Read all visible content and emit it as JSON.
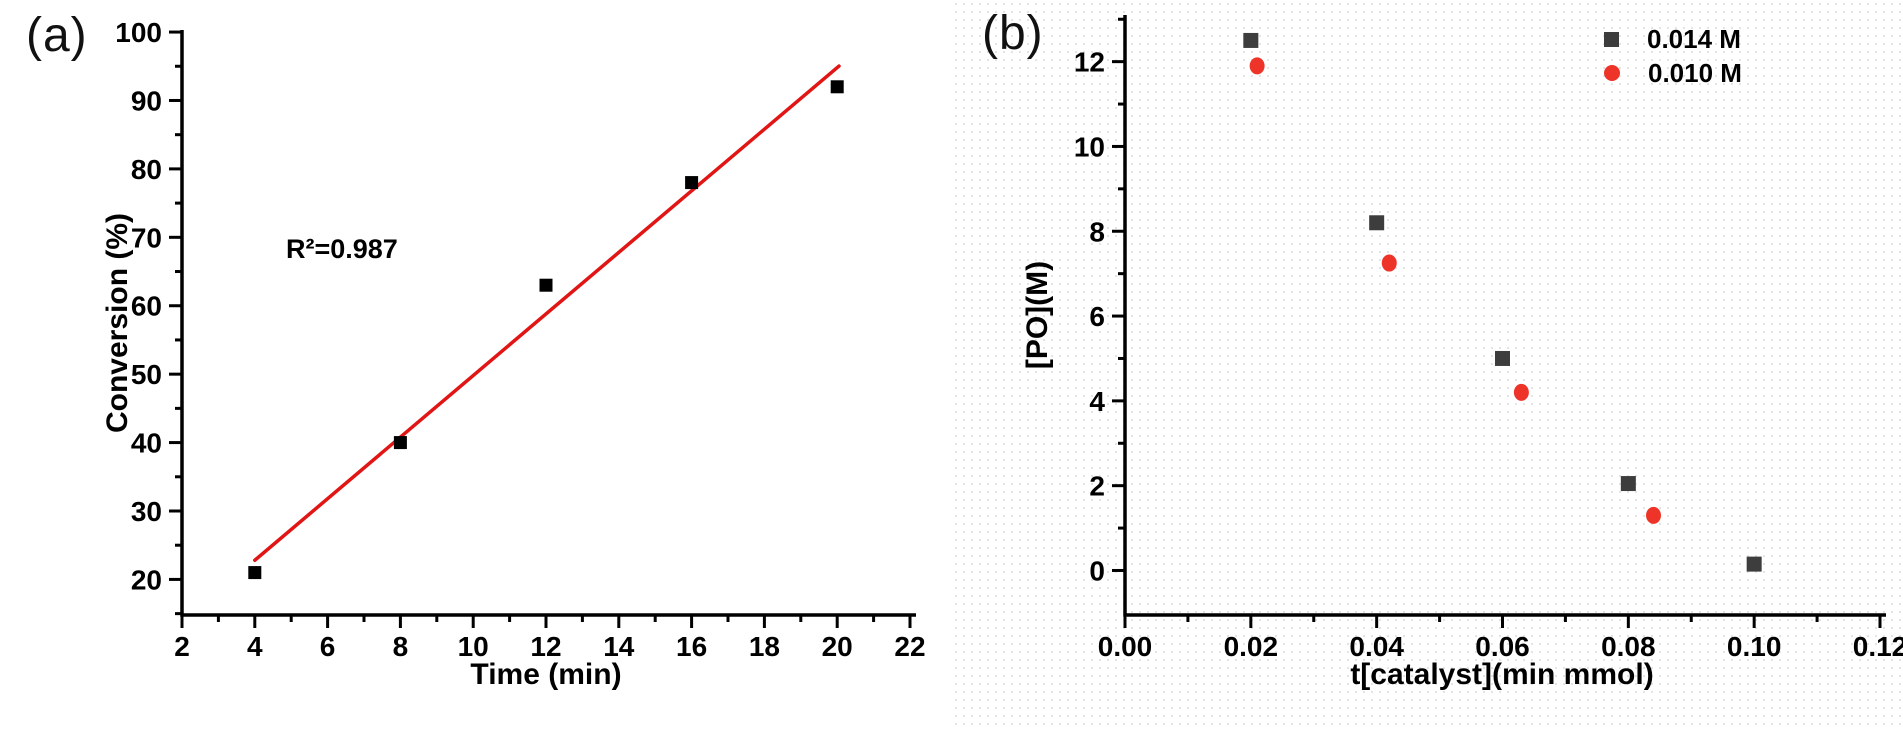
{
  "figure": {
    "background": "#ffffff",
    "axis_color": "#000000"
  },
  "chart_data": [
    {
      "tag": "(a)",
      "type": "scatter",
      "xlabel": "Time (min)",
      "ylabel": "Conversion (%)",
      "xlim": [
        2,
        22
      ],
      "ylim": [
        14.8,
        100.3
      ],
      "xtick_values": [
        2,
        4,
        6,
        8,
        10,
        12,
        14,
        16,
        18,
        20,
        22
      ],
      "xtick_labels": [
        "2",
        "4",
        "6",
        "8",
        "10",
        "12",
        "14",
        "16",
        "18",
        "20",
        "22"
      ],
      "ytick_values": [
        20,
        30,
        40,
        50,
        60,
        70,
        80,
        90,
        100
      ],
      "ytick_labels": [
        "20",
        "30",
        "40",
        "50",
        "60",
        "70",
        "80",
        "90",
        "100"
      ],
      "minor_x": [
        3,
        5,
        7,
        9,
        11,
        13,
        15,
        17,
        19,
        21
      ],
      "minor_y": [
        15,
        25,
        35,
        45,
        55,
        65,
        75,
        85,
        95
      ],
      "grid": false,
      "legend": null,
      "annotation": {
        "text": "R²=0.987"
      },
      "fit_line": {
        "color": "#e21515",
        "slope": 4.5,
        "intercept": 4.8,
        "x_start": 4.0,
        "x_end": 20.05
      },
      "series": [
        {
          "name": "conversion",
          "marker": "square",
          "color": "#000000",
          "size": 13,
          "x": [
            4,
            8,
            12,
            16,
            20
          ],
          "y": [
            21,
            40,
            63,
            78,
            92
          ]
        }
      ]
    },
    {
      "tag": "(b)",
      "type": "scatter",
      "xlabel": "t[catalyst](min mmol)",
      "ylabel": "[PO](M)",
      "xlim": [
        0,
        0.12
      ],
      "ylim": [
        -1.05,
        13.1
      ],
      "xtick_values": [
        0,
        0.02,
        0.04,
        0.06,
        0.08,
        0.1,
        0.12
      ],
      "xtick_labels": [
        "0.00",
        "0.02",
        "0.04",
        "0.06",
        "0.08",
        "0.10",
        "0.12"
      ],
      "ytick_values": [
        0,
        2,
        4,
        6,
        8,
        10,
        12
      ],
      "ytick_labels": [
        "0",
        "2",
        "4",
        "6",
        "8",
        "10",
        "12"
      ],
      "minor_x": [
        0.01,
        0.03,
        0.05,
        0.07,
        0.09,
        0.11
      ],
      "minor_y": [
        1,
        3,
        5,
        7,
        9,
        11,
        13
      ],
      "grid": false,
      "annotation": null,
      "fit_line": null,
      "legend": {
        "position": "top-right"
      },
      "series": [
        {
          "name": "0.014 M",
          "marker": "square",
          "color": "#3d3d3d",
          "size": 15,
          "x": [
            0.02,
            0.04,
            0.06,
            0.08,
            0.1
          ],
          "y": [
            12.5,
            8.2,
            5.0,
            2.05,
            0.15
          ]
        },
        {
          "name": "0.010 M",
          "marker": "circle",
          "color": "#ee3428",
          "size": 16,
          "x": [
            0.021,
            0.042,
            0.063,
            0.084
          ],
          "y": [
            11.9,
            7.25,
            4.2,
            1.3
          ]
        }
      ]
    }
  ]
}
